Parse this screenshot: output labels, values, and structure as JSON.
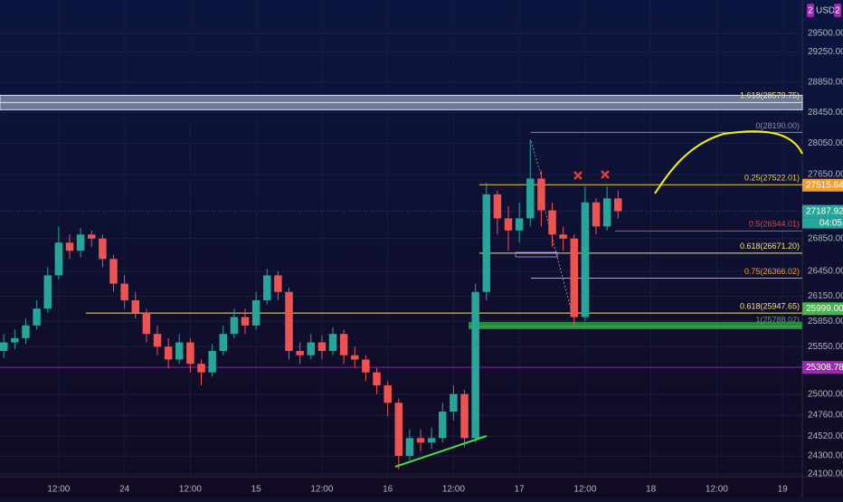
{
  "chart_data": {
    "type": "candlestick",
    "log_scale": true,
    "xlim": [
      1.3,
      147.6
    ],
    "xticks": [
      {
        "value": 12,
        "label": "12:00"
      },
      24,
      {
        "value": 36,
        "label": "12:00"
      },
      {
        "value": 48,
        "label": "15"
      },
      {
        "value": 60,
        "label": "12:00"
      },
      {
        "value": 72,
        "label": "16"
      },
      {
        "value": 84,
        "label": "12:00"
      },
      {
        "value": 96,
        "label": "17"
      },
      {
        "value": 108,
        "label": "12:00"
      },
      {
        "value": 120,
        "label": "18"
      },
      {
        "value": 132,
        "label": "12:00"
      },
      {
        "value": 144,
        "label": "19"
      }
    ],
    "ylim": [
      24070,
      29957
    ],
    "yticks": [
      {
        "value": 29500,
        "label": "29500.00"
      },
      {
        "value": 29250,
        "label": "29250.00"
      },
      {
        "value": 28850,
        "label": "28850.00"
      },
      {
        "value": 28450,
        "label": "28450.00"
      },
      {
        "value": 28050,
        "label": "28050.00"
      },
      {
        "value": 27650,
        "label": "27650.00"
      },
      {
        "value": 26850,
        "label": "26850.00"
      },
      {
        "value": 26450,
        "label": "26450.00"
      },
      {
        "value": 26150,
        "label": "26150.00"
      },
      {
        "value": 25850,
        "label": "25850.00"
      },
      {
        "value": 25550,
        "label": "25550.00"
      },
      {
        "value": 25000,
        "label": "25000.00"
      },
      {
        "value": 24760,
        "label": "24760.00"
      },
      {
        "value": 24520,
        "label": "24520.00"
      },
      {
        "value": 24300,
        "label": "24300.00"
      },
      {
        "value": 24100,
        "label": "24100.00"
      }
    ],
    "grid": true,
    "up_color": "#26a69a",
    "down_color": "#ef5350",
    "x": [
      2,
      4,
      6,
      8,
      10,
      12,
      14,
      16,
      18,
      20,
      22,
      24,
      26,
      28,
      30,
      32,
      34,
      36,
      38,
      40,
      42,
      44,
      46,
      48,
      50,
      52,
      54,
      56,
      58,
      60,
      62,
      64,
      66,
      68,
      70,
      72,
      74,
      76,
      78,
      80,
      82,
      84,
      86,
      88,
      90,
      92,
      94,
      96,
      98,
      100,
      102,
      104,
      106,
      108,
      110,
      112,
      114
    ],
    "open": [
      25500,
      25600,
      25650,
      25800,
      26000,
      26400,
      26800,
      26700,
      26900,
      26850,
      26600,
      26300,
      26100,
      25950,
      25700,
      25550,
      25400,
      25600,
      25350,
      25250,
      25500,
      25700,
      25900,
      25800,
      26100,
      26400,
      26200,
      25500,
      25450,
      25600,
      25500,
      25700,
      25450,
      25400,
      25250,
      25100,
      24900,
      24300,
      24500,
      24450,
      24500,
      24800,
      25000,
      24500,
      26200,
      27400,
      27100,
      26950,
      27100,
      27600,
      27200,
      26900,
      26850,
      25900,
      27300,
      27000,
      27350
    ],
    "high": [
      25700,
      25750,
      25880,
      26100,
      26500,
      27000,
      26900,
      26980,
      26950,
      26900,
      26650,
      26400,
      26200,
      26000,
      25800,
      25650,
      25700,
      25650,
      25400,
      25580,
      25800,
      26000,
      26000,
      26200,
      26480,
      26450,
      26250,
      25600,
      25700,
      25680,
      25780,
      25750,
      25550,
      25450,
      25300,
      25150,
      24950,
      24600,
      24600,
      24620,
      24900,
      25100,
      25050,
      26300,
      27550,
      27450,
      27250,
      27300,
      28100,
      27700,
      27300,
      27000,
      26900,
      27500,
      27350,
      27500,
      27450
    ],
    "low": [
      25420,
      25520,
      25580,
      25750,
      25950,
      26350,
      26600,
      26620,
      26750,
      26500,
      26200,
      26000,
      25880,
      25600,
      25450,
      25300,
      25350,
      25250,
      25100,
      25200,
      25450,
      25650,
      25700,
      25750,
      26050,
      26100,
      25400,
      25350,
      25400,
      25400,
      25450,
      25350,
      25300,
      25150,
      25000,
      24750,
      24150,
      24250,
      24350,
      24380,
      24450,
      24700,
      24400,
      24450,
      26100,
      26900,
      26700,
      26800,
      27000,
      27000,
      26750,
      26700,
      25790,
      25850,
      26900,
      26950,
      27100
    ],
    "close": [
      25600,
      25650,
      25800,
      26000,
      26400,
      26800,
      26700,
      26900,
      26850,
      26600,
      26300,
      26100,
      25950,
      25700,
      25550,
      25400,
      25600,
      25350,
      25250,
      25500,
      25700,
      25900,
      25800,
      26100,
      26400,
      26200,
      25500,
      25450,
      25600,
      25500,
      25700,
      25450,
      25400,
      25250,
      25100,
      24900,
      24300,
      24500,
      24450,
      24500,
      24800,
      25000,
      24500,
      26200,
      27400,
      27100,
      26950,
      27100,
      27600,
      27200,
      26900,
      26850,
      25900,
      27300,
      27000,
      27350,
      27190
    ],
    "annotations": [
      {
        "label": "1.618(28579.75)",
        "value": 28579.75,
        "color": "#f5e9b0"
      },
      {
        "label": "0(28190.00)",
        "value": 28190.0,
        "color": "#8a8f9c"
      },
      {
        "label": "0.25(27522.01)",
        "value": 27522.01,
        "color": "#f2c94c"
      },
      {
        "label": "0.5(26944.01)",
        "value": 26944.01,
        "color": "#c0504d"
      },
      {
        "label": "0.618(26671.20)",
        "value": 26671.2,
        "color": "#f5e27a"
      },
      {
        "label": "0.75(26366.02)",
        "value": 26366.02,
        "color": "#f0a030"
      },
      {
        "label": "0.618(25947.65)",
        "value": 25947.65,
        "color": "#f5e27a"
      },
      {
        "label": "1(25788.02)",
        "value": 25788.02,
        "color": "#6b9a6e"
      }
    ],
    "price_labels": [
      {
        "value": 27515.64,
        "label": "27515.64",
        "color": "#f0a030"
      },
      {
        "value": 27187.92,
        "label": "27187.92",
        "color": "#26a69a"
      },
      {
        "value": 25999.0,
        "label": "25999.00",
        "color": "#4caf50"
      },
      {
        "value": 25308.78,
        "label": "25308.78",
        "color": "#9c27b0"
      }
    ],
    "countdown": "04:05",
    "currency": "USDT",
    "currency_badge": "2"
  }
}
